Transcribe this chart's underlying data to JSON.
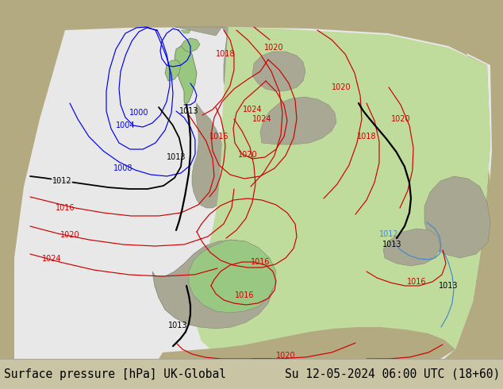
{
  "title_left": "Surface pressure [hPa] UK-Global",
  "title_right": "Su 12-05-2024 06:00 UTC (18+60)",
  "bg_outer": "#b3aa82",
  "bg_map_white": "#e8e8e8",
  "bg_map_green": "#c0dc9c",
  "bg_land_gray": "#a8a890",
  "bg_land_green": "#8cb878",
  "footer_bg": "#c8c4a4",
  "c_blue": "#0000ee",
  "c_red": "#cc0000",
  "c_black": "#000000",
  "c_blue2": "#4488cc",
  "c_coast": "#888877",
  "lw_iso": 0.85,
  "lw_front": 1.6,
  "fs_label": 7,
  "fs_footer": 10.5
}
